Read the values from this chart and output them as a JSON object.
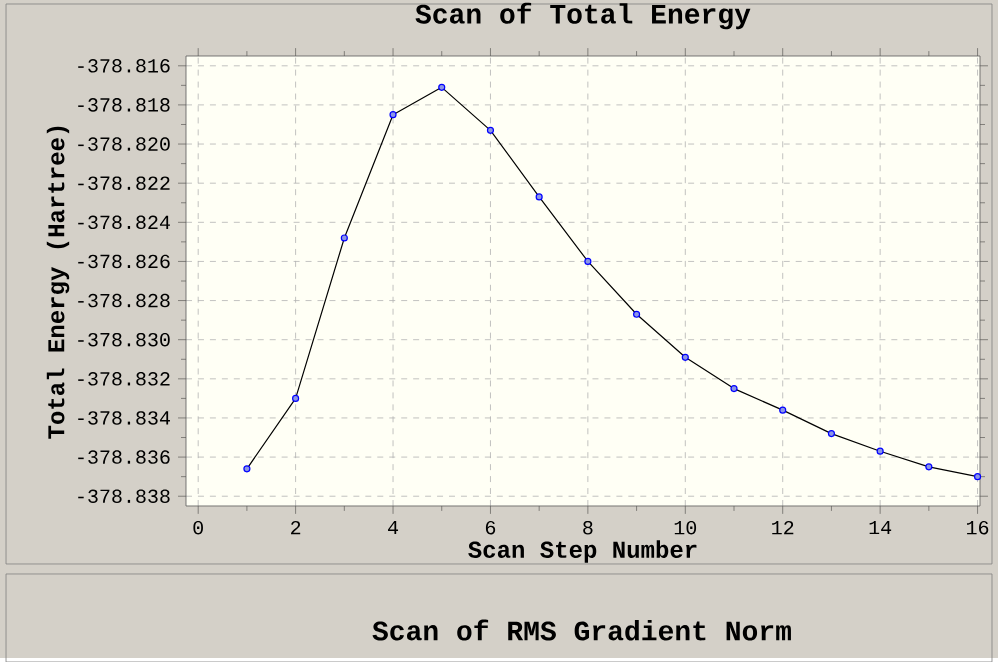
{
  "chart_data": {
    "type": "line",
    "title": "Scan of Total Energy",
    "xlabel": "Scan Step Number",
    "ylabel": "Total Energy (Hartree)",
    "x": [
      1,
      2,
      3,
      4,
      5,
      6,
      7,
      8,
      9,
      10,
      11,
      12,
      13,
      14,
      15,
      16
    ],
    "values": [
      -378.8366,
      -378.833,
      -378.8248,
      -378.8185,
      -378.8171,
      -378.8193,
      -378.8227,
      -378.826,
      -378.8287,
      -378.8309,
      -378.8325,
      -378.8336,
      -378.8348,
      -378.8357,
      -378.8365,
      -378.837
    ],
    "color": "#000000",
    "marker": "circle",
    "grid": true,
    "xlim": [
      -0.25,
      16.05
    ],
    "ylim": [
      -378.8385,
      -378.8155
    ],
    "xticks": [
      0,
      2,
      4,
      6,
      8,
      10,
      12,
      14,
      16
    ],
    "yticks": [
      -378.838,
      -378.836,
      -378.834,
      -378.832,
      {
        "value": -378.83,
        "label": "-378.830"
      },
      -378.828,
      -378.826,
      -378.824,
      -378.822,
      {
        "value": -378.82,
        "label": "-378.820"
      },
      -378.818,
      -378.816
    ],
    "annotations": [
      "Scan of RMS Gradient Norm"
    ]
  }
}
